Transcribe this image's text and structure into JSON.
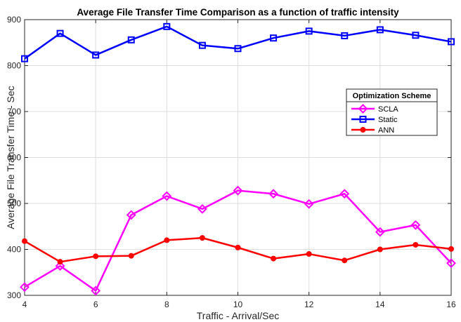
{
  "chart_data": {
    "type": "line",
    "title": "Average File Transfer Time Comparison as a function of traffic intensity",
    "xlabel": "Traffic - Arrival/Sec",
    "ylabel": "Average File Transfer Time - Sec",
    "xlim": [
      4,
      16
    ],
    "ylim": [
      300,
      900
    ],
    "xticks": [
      4,
      6,
      8,
      10,
      12,
      14,
      16
    ],
    "yticks": [
      300,
      400,
      500,
      600,
      700,
      800,
      900
    ],
    "grid": true,
    "legend": {
      "title": "Optimization Scheme",
      "placement": "right"
    },
    "x": [
      4,
      5,
      6,
      7,
      8,
      9,
      10,
      11,
      12,
      13,
      14,
      15,
      16
    ],
    "series": [
      {
        "name": "SCLA",
        "color": "#ff00ff",
        "marker": "diamond",
        "values": [
          318,
          364,
          310,
          475,
          516,
          488,
          528,
          521,
          499,
          521,
          438,
          453,
          370
        ]
      },
      {
        "name": "Static",
        "color": "#0000ff",
        "marker": "square",
        "values": [
          815,
          870,
          823,
          856,
          885,
          844,
          837,
          860,
          875,
          865,
          878,
          866,
          852
        ]
      },
      {
        "name": "ANN",
        "color": "#ff0000",
        "marker": "circle",
        "values": [
          418,
          373,
          385,
          386,
          420,
          425,
          404,
          380,
          390,
          376,
          400,
          410,
          401
        ]
      }
    ]
  }
}
